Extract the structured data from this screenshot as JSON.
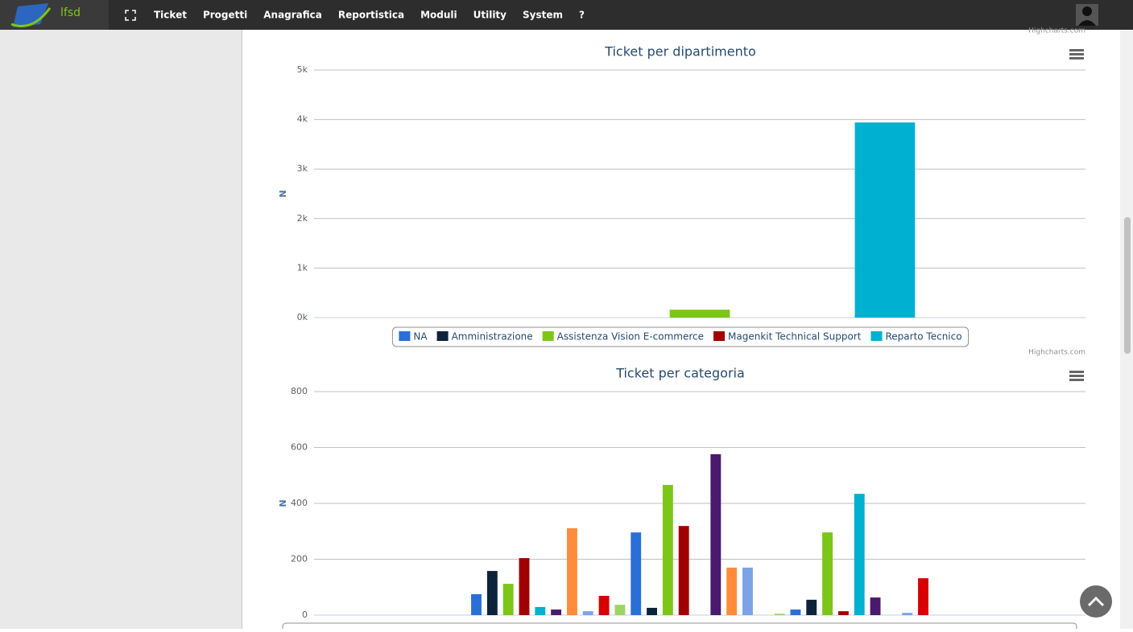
{
  "app": {
    "logo": "lfsd",
    "menu": [
      "Ticket",
      "Progetti",
      "Anagrafica",
      "Reportistica",
      "Moduli",
      "Utility",
      "System",
      "?"
    ]
  },
  "credits": "Highcharts.com",
  "chart_data": [
    {
      "type": "bar",
      "title": "Ticket per dipartimento",
      "y_label": "N",
      "categories": [
        null
      ],
      "series": [
        {
          "name": "NA",
          "color": "#2a6fd8",
          "values": [
            0
          ]
        },
        {
          "name": "Amministrazione",
          "color": "#0d233a",
          "values": [
            0
          ]
        },
        {
          "name": "Assistenza Vision E-commerce",
          "color": "#7cc618",
          "values": [
            160
          ]
        },
        {
          "name": "Magenkit Technical Support",
          "color": "#a00000",
          "values": [
            0
          ]
        },
        {
          "name": "Reparto Tecnico",
          "color": "#00b0d0",
          "values": [
            3940
          ]
        }
      ],
      "ylim": [
        0,
        5000
      ],
      "yticks": [
        {
          "value": 0,
          "label": "0k"
        },
        {
          "value": 1000,
          "label": "1k"
        },
        {
          "value": 2000,
          "label": "2k"
        },
        {
          "value": 3000,
          "label": "3k"
        },
        {
          "value": 4000,
          "label": "4k"
        },
        {
          "value": 5000,
          "label": "5k"
        }
      ],
      "grid": true,
      "legend": "bottom"
    },
    {
      "type": "bar",
      "title": "Ticket per categoria",
      "y_label": "N",
      "categories": [
        null
      ],
      "series": [
        {
          "color": "#2a6fd8",
          "values": [
            75
          ]
        },
        {
          "color": "#0d233a",
          "values": [
            158
          ]
        },
        {
          "color": "#7cc618",
          "values": [
            112
          ]
        },
        {
          "color": "#a00000",
          "values": [
            204
          ]
        },
        {
          "color": "#00b0d0",
          "values": [
            29
          ]
        },
        {
          "color": "#4a1a6e",
          "values": [
            20
          ]
        },
        {
          "color": "#ff8c3a",
          "values": [
            311
          ]
        },
        {
          "color": "#7ea2e6",
          "values": [
            14
          ]
        },
        {
          "color": "#d60000",
          "values": [
            69
          ]
        },
        {
          "color": "#9ed36a",
          "values": [
            37
          ]
        },
        {
          "color": "#2a6fd8",
          "values": [
            296
          ]
        },
        {
          "color": "#0d233a",
          "values": [
            26
          ]
        },
        {
          "color": "#7cc618",
          "values": [
            466
          ]
        },
        {
          "color": "#a00000",
          "values": [
            319
          ]
        },
        {
          "color": "#00b0d0",
          "values": [
            0
          ]
        },
        {
          "color": "#4a1a6e",
          "values": [
            576
          ]
        },
        {
          "color": "#ff8c3a",
          "values": [
            170
          ]
        },
        {
          "color": "#7ea2e6",
          "values": [
            170
          ]
        },
        {
          "color": "#d60000",
          "values": [
            0
          ]
        },
        {
          "color": "#9ed36a",
          "values": [
            5
          ]
        },
        {
          "color": "#2a6fd8",
          "values": [
            20
          ]
        },
        {
          "color": "#0d233a",
          "values": [
            55
          ]
        },
        {
          "color": "#7cc618",
          "values": [
            296
          ]
        },
        {
          "color": "#a00000",
          "values": [
            14
          ]
        },
        {
          "color": "#00b0d0",
          "values": [
            434
          ]
        },
        {
          "color": "#4a1a6e",
          "values": [
            63
          ]
        },
        {
          "color": "#ff8c3a",
          "values": [
            0
          ]
        },
        {
          "color": "#7ea2e6",
          "values": [
            8
          ]
        },
        {
          "color": "#d60000",
          "values": [
            132
          ]
        }
      ],
      "ylim": [
        0,
        800
      ],
      "yticks": [
        0,
        200,
        400,
        600,
        800
      ],
      "grid": true
    }
  ]
}
